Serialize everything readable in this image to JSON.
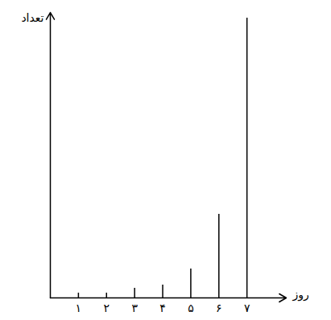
{
  "chart_data": {
    "type": "stem",
    "x_label": "روز",
    "y_label": "تعداد",
    "x": [
      1,
      2,
      3,
      4,
      5,
      6,
      7
    ],
    "values": [
      6,
      6,
      12,
      16,
      36,
      104,
      348
    ],
    "color": "#000000",
    "xlim": [
      0,
      8.4
    ],
    "xticks": [
      {
        "value": 1,
        "label": "۱"
      },
      {
        "value": 2,
        "label": "۲"
      },
      {
        "value": 3,
        "label": "۳"
      },
      {
        "value": 4,
        "label": "۴"
      },
      {
        "value": 5,
        "label": "۵"
      },
      {
        "value": 6,
        "label": "۶"
      },
      {
        "value": 7,
        "label": "۷"
      }
    ],
    "ylim": [
      0,
      355
    ],
    "tick_labels": "x"
  }
}
